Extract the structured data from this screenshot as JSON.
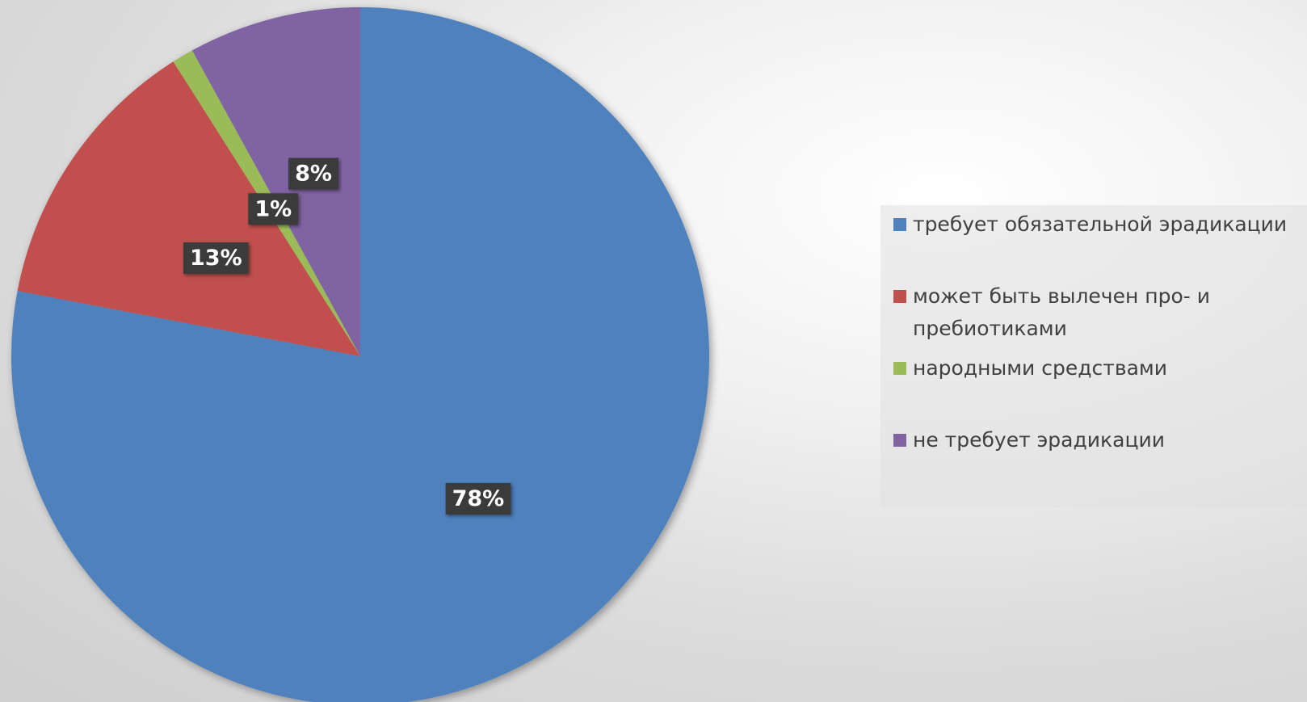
{
  "chart_data": {
    "type": "pie",
    "start_angle": "12 o'clock, clockwise",
    "slices": [
      {
        "label": "требует обязательной эрадикации",
        "value": 78,
        "display": "78%",
        "color": "#4f81bd"
      },
      {
        "label": "может быть вылечен про- и пребиотиками",
        "value": 13,
        "display": "13%",
        "color": "#c0504d"
      },
      {
        "label": "народными средствами",
        "value": 1,
        "display": "1%",
        "color": "#9bbb59"
      },
      {
        "label": "не требует эрадикации",
        "value": 8,
        "display": "8%",
        "color": "#8064a2"
      }
    ],
    "legend_position": "right"
  }
}
